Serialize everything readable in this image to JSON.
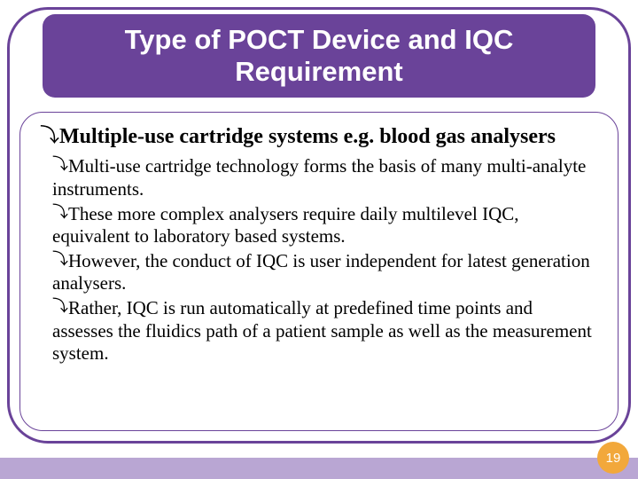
{
  "colors": {
    "purple": "#6a4399",
    "purple_light": "#b9a6d3",
    "accent": "#f2a83b",
    "text": "#000000",
    "title_text": "#ffffff"
  },
  "title": {
    "text": "Type of POCT Device and IQC Requirement",
    "fontsize": 31
  },
  "main_bullet": {
    "icon": "⤵",
    "text": "Multiple-use cartridge systems e.g. blood gas analysers",
    "fontsize": 24,
    "icon_fontsize": 22
  },
  "sub_bullets": {
    "icon": "⤵",
    "fontsize": 21,
    "icon_fontsize": 18,
    "items": [
      "Multi-use cartridge technology forms the basis of many multi-analyte instruments.",
      "These more complex analysers require daily multilevel IQC, equivalent to laboratory based systems.",
      "However, the conduct of IQC is user independent for latest generation analysers.",
      "Rather, IQC is run automatically at predefined time points and assesses the fluidics path of a patient sample as well as the measurement system."
    ]
  },
  "page_number": "19",
  "page_number_fontsize": 15
}
